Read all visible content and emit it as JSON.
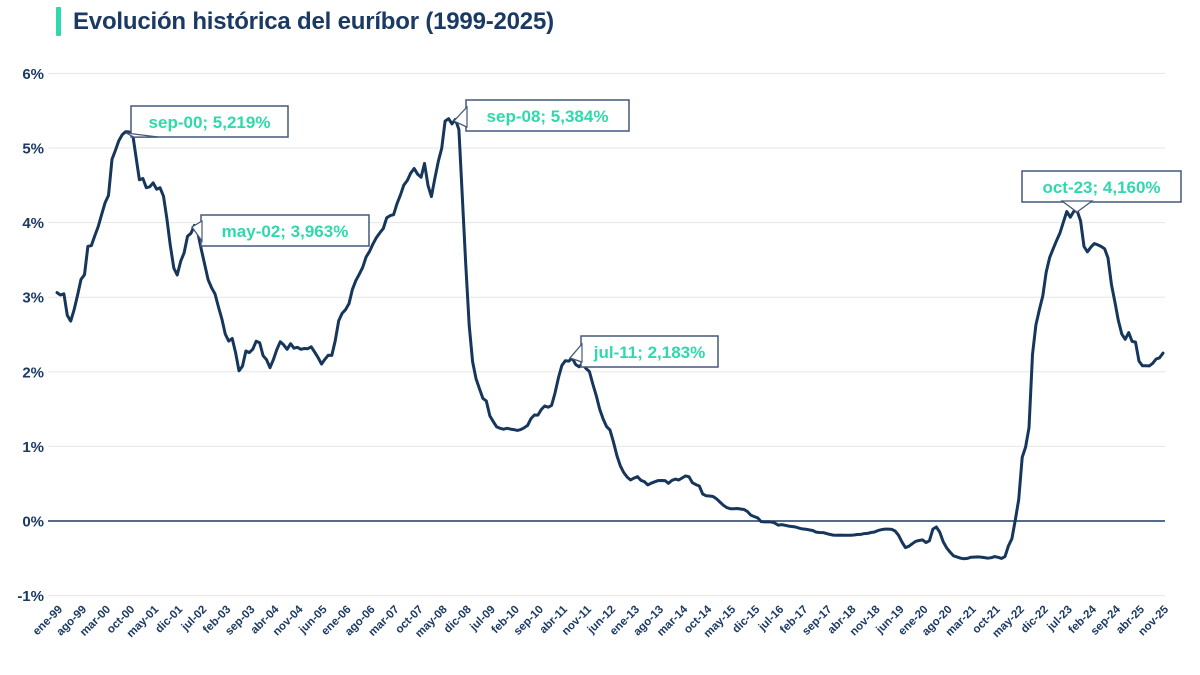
{
  "title": "Evolución histórica del euríbor (1999-2025)",
  "colors": {
    "accent_teal": "#2fd9ac",
    "navy": "#1b3a63",
    "line_navy": "#16365c",
    "gridline_gray": "#e6e6e6",
    "annotation_border": "#44597a",
    "annotation_bg": "#ffffff"
  },
  "chart_data": {
    "type": "line",
    "title": "Evolución histórica del euríbor (1999-2025)",
    "xlabel": "",
    "ylabel": "",
    "ylim": [
      -1,
      6
    ],
    "grid": "horizontal",
    "legend": "none",
    "y_ticks": [
      {
        "label": "6%",
        "value": 6
      },
      {
        "label": "5%",
        "value": 5
      },
      {
        "label": "4%",
        "value": 4
      },
      {
        "label": "3%",
        "value": 3
      },
      {
        "label": "2%",
        "value": 2
      },
      {
        "label": "1%",
        "value": 1
      },
      {
        "label": "0%",
        "value": 0
      },
      {
        "label": "-1%",
        "value": -1
      }
    ],
    "x_tick_step_months": 7,
    "x_tick_labels": [
      "ene-99",
      "ago-99",
      "mar-00",
      "oct-00",
      "may-01",
      "dic-01",
      "jul-02",
      "feb-03",
      "sep-03",
      "abr-04",
      "nov-04",
      "jun-05",
      "ene-06",
      "ago-06",
      "mar-07",
      "oct-07",
      "may-08",
      "dic-08",
      "jul-09",
      "feb-10",
      "sep-10",
      "abr-11",
      "nov-11",
      "jun-12",
      "ene-13",
      "ago-13",
      "mar-14",
      "oct-14",
      "may-15",
      "dic-15",
      "jul-16",
      "feb-17",
      "sep-17",
      "abr-18",
      "nov-18",
      "jun-19",
      "ene-20",
      "ago-20",
      "mar-21",
      "oct-21",
      "may-22",
      "dic-22",
      "jul-23",
      "feb-24",
      "sep-24",
      "abr-25",
      "nov-25"
    ],
    "series_start_month": "ene-99",
    "series_end_month": "nov-25",
    "values": [
      3.062,
      3.03,
      3.045,
      2.756,
      2.68,
      2.836,
      3.03,
      3.239,
      3.302,
      3.682,
      3.691,
      3.825,
      3.946,
      4.111,
      4.267,
      4.364,
      4.849,
      4.968,
      5.098,
      5.18,
      5.219,
      5.215,
      5.193,
      4.881,
      4.574,
      4.591,
      4.468,
      4.48,
      4.532,
      4.448,
      4.468,
      4.354,
      4.05,
      3.695,
      3.392,
      3.298,
      3.483,
      3.594,
      3.816,
      3.858,
      3.963,
      3.869,
      3.641,
      3.438,
      3.236,
      3.126,
      3.044,
      2.872,
      2.706,
      2.504,
      2.411,
      2.447,
      2.256,
      2.014,
      2.076,
      2.279,
      2.257,
      2.303,
      2.41,
      2.389,
      2.216,
      2.163,
      2.055,
      2.163,
      2.297,
      2.404,
      2.361,
      2.302,
      2.377,
      2.316,
      2.328,
      2.301,
      2.312,
      2.31,
      2.335,
      2.265,
      2.193,
      2.103,
      2.168,
      2.223,
      2.22,
      2.414,
      2.684,
      2.783,
      2.833,
      2.914,
      3.105,
      3.221,
      3.308,
      3.401,
      3.539,
      3.615,
      3.715,
      3.799,
      3.864,
      3.921,
      4.064,
      4.094,
      4.106,
      4.253,
      4.373,
      4.505,
      4.564,
      4.666,
      4.725,
      4.647,
      4.607,
      4.793,
      4.498,
      4.349,
      4.59,
      4.82,
      4.994,
      5.361,
      5.393,
      5.323,
      5.384,
      5.248,
      4.35,
      3.452,
      2.622,
      2.135,
      1.909,
      1.771,
      1.644,
      1.61,
      1.412,
      1.334,
      1.261,
      1.243,
      1.231,
      1.242,
      1.232,
      1.225,
      1.215,
      1.225,
      1.249,
      1.281,
      1.373,
      1.421,
      1.42,
      1.495,
      1.541,
      1.526,
      1.55,
      1.714,
      1.924,
      2.086,
      2.147,
      2.144,
      2.183,
      2.097,
      2.067,
      2.11,
      2.044,
      2.004,
      1.837,
      1.678,
      1.499,
      1.368,
      1.266,
      1.219,
      1.061,
      0.877,
      0.74,
      0.65,
      0.588,
      0.549,
      0.575,
      0.594,
      0.545,
      0.528,
      0.484,
      0.507,
      0.525,
      0.542,
      0.543,
      0.541,
      0.506,
      0.543,
      0.562,
      0.549,
      0.577,
      0.604,
      0.592,
      0.513,
      0.488,
      0.469,
      0.362,
      0.338,
      0.335,
      0.329,
      0.298,
      0.255,
      0.212,
      0.18,
      0.165,
      0.163,
      0.167,
      0.161,
      0.154,
      0.128,
      0.079,
      0.059,
      0.042,
      -0.008,
      -0.012,
      -0.01,
      -0.013,
      -0.028,
      -0.056,
      -0.048,
      -0.057,
      -0.069,
      -0.074,
      -0.08,
      -0.095,
      -0.106,
      -0.11,
      -0.119,
      -0.127,
      -0.149,
      -0.154,
      -0.156,
      -0.168,
      -0.18,
      -0.189,
      -0.19,
      -0.189,
      -0.191,
      -0.191,
      -0.19,
      -0.188,
      -0.181,
      -0.18,
      -0.169,
      -0.166,
      -0.154,
      -0.147,
      -0.129,
      -0.116,
      -0.108,
      -0.109,
      -0.112,
      -0.134,
      -0.19,
      -0.283,
      -0.356,
      -0.339,
      -0.304,
      -0.272,
      -0.261,
      -0.253,
      -0.288,
      -0.266,
      -0.108,
      -0.081,
      -0.147,
      -0.279,
      -0.359,
      -0.415,
      -0.466,
      -0.481,
      -0.497,
      -0.505,
      -0.501,
      -0.487,
      -0.484,
      -0.481,
      -0.484,
      -0.491,
      -0.498,
      -0.492,
      -0.477,
      -0.487,
      -0.502,
      -0.477,
      -0.335,
      -0.237,
      0.013,
      0.287,
      0.852,
      0.992,
      1.249,
      2.233,
      2.629,
      2.828,
      3.018,
      3.337,
      3.534,
      3.647,
      3.757,
      3.862,
      4.007,
      4.149,
      4.073,
      4.149,
      4.16,
      4.022,
      3.679,
      3.609,
      3.671,
      3.718,
      3.703,
      3.68,
      3.65,
      3.526,
      3.166,
      2.936,
      2.691,
      2.506,
      2.436,
      2.525,
      2.407,
      2.398,
      2.143,
      2.081,
      2.081,
      2.079,
      2.114,
      2.172,
      2.187,
      2.25
    ],
    "annotations": [
      {
        "label": "sep-00; 5,219%",
        "month_index": 20,
        "value": 5.219
      },
      {
        "label": "may-02; 3,963%",
        "month_index": 40,
        "value": 3.963
      },
      {
        "label": "sep-08; 5,384%",
        "month_index": 116,
        "value": 5.384
      },
      {
        "label": "jul-11; 2,183%",
        "month_index": 150,
        "value": 2.183
      },
      {
        "label": "oct-23; 4,160%",
        "month_index": 297,
        "value": 4.16
      }
    ]
  }
}
